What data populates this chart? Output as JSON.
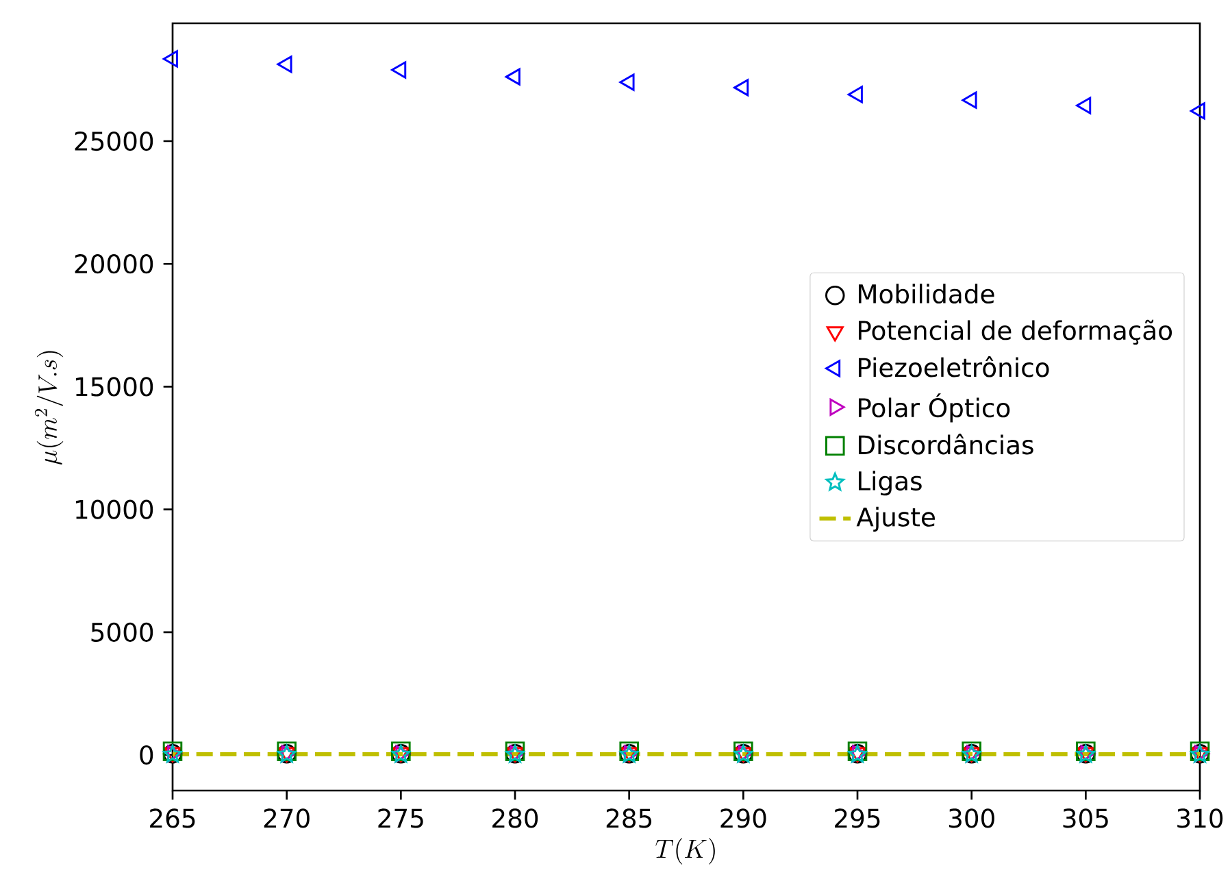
{
  "chart_data": {
    "type": "scatter",
    "xlabel": "T(K)",
    "ylabel": "\\mu(m^2/V.s)",
    "x": [
      265,
      270,
      275,
      280,
      285,
      290,
      295,
      300,
      305,
      310
    ],
    "xlim": [
      265,
      310
    ],
    "xticks": [
      265,
      270,
      275,
      280,
      285,
      290,
      295,
      300,
      305,
      310
    ],
    "ylim": [
      -1450,
      29800
    ],
    "yticks": [
      0,
      5000,
      10000,
      15000,
      20000,
      25000
    ],
    "legend": "right",
    "grid": false,
    "series": [
      {
        "name": "Mobilidade",
        "color": "#000000",
        "marker": "circle",
        "values": [
          50,
          50,
          50,
          50,
          50,
          50,
          50,
          50,
          50,
          50
        ]
      },
      {
        "name": "Potencial de deformação",
        "color": "#ff0000",
        "marker": "triangle_down",
        "values": [
          100,
          100,
          100,
          100,
          100,
          100,
          100,
          100,
          100,
          100
        ]
      },
      {
        "name": "Piezoeletrônico",
        "color": "#0000ff",
        "marker": "triangle_left",
        "values": [
          28350,
          28130,
          27900,
          27620,
          27400,
          27180,
          26900,
          26670,
          26450,
          26230
        ]
      },
      {
        "name": "Polar Óptico",
        "color": "#bf00bf",
        "marker": "triangle_right",
        "values": [
          50,
          50,
          50,
          50,
          50,
          50,
          50,
          50,
          50,
          50
        ]
      },
      {
        "name": "Discordâncias",
        "color": "#008000",
        "marker": "square",
        "values": [
          150,
          150,
          150,
          150,
          150,
          150,
          150,
          150,
          150,
          150
        ]
      },
      {
        "name": "Ligas",
        "color": "#00bfbf",
        "marker": "star",
        "values": [
          20,
          20,
          20,
          20,
          20,
          20,
          20,
          20,
          20,
          20
        ]
      },
      {
        "name": "Ajuste",
        "type": "line",
        "color": "#bfbf00",
        "marker": "none",
        "line_style": "dashed",
        "values": [
          30,
          30,
          30,
          30,
          30,
          30,
          30,
          30,
          30,
          30
        ]
      }
    ]
  }
}
